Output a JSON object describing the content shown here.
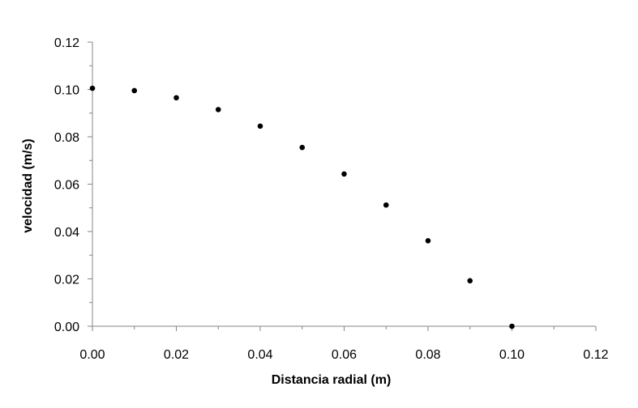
{
  "chart_data": {
    "type": "scatter",
    "title": "",
    "xlabel": "Distancia radial (m)",
    "ylabel": "velocidad (m/s)",
    "xlim": [
      0,
      0.12
    ],
    "ylim": [
      0,
      0.12
    ],
    "x_ticks": [
      "0.00",
      "0.02",
      "0.04",
      "0.06",
      "0.08",
      "0.10",
      "0.12"
    ],
    "y_ticks": [
      "0.00",
      "0.02",
      "0.04",
      "0.06",
      "0.08",
      "0.10",
      "0.12"
    ],
    "grid": false,
    "legend": "none",
    "marker_color": "#000000",
    "series": [
      {
        "points": [
          {
            "x": 0.0,
            "y": 0.1005
          },
          {
            "x": 0.01,
            "y": 0.0995
          },
          {
            "x": 0.02,
            "y": 0.0965
          },
          {
            "x": 0.03,
            "y": 0.0915
          },
          {
            "x": 0.04,
            "y": 0.0845
          },
          {
            "x": 0.05,
            "y": 0.0755
          },
          {
            "x": 0.06,
            "y": 0.0643
          },
          {
            "x": 0.07,
            "y": 0.0512
          },
          {
            "x": 0.08,
            "y": 0.0361
          },
          {
            "x": 0.09,
            "y": 0.0192
          },
          {
            "x": 0.1,
            "y": 0.0
          }
        ]
      }
    ]
  }
}
